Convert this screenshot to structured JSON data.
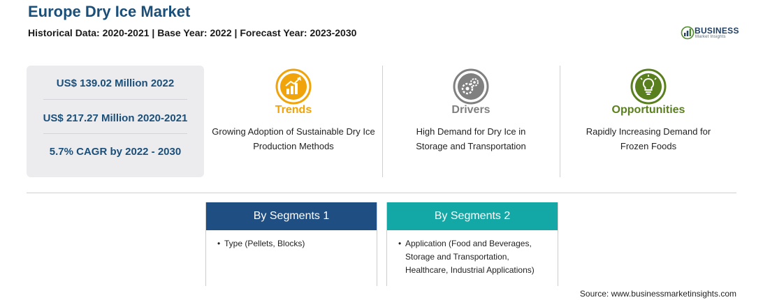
{
  "header": {
    "title": "Europe Dry Ice Market",
    "subtitle": "Historical Data: 2020-2021 | Base Year: 2022 | Forecast Year: 2023-2030"
  },
  "logo": {
    "name": "BUSINESS",
    "tagline": "Market Insights"
  },
  "stats": [
    "US$ 139.02 Million 2022",
    "US$ 217.27 Million 2020-2021",
    "5.7% CAGR by 2022 - 2030"
  ],
  "columns": [
    {
      "label": "Trends",
      "text": "Growing Adoption of Sustainable Dry Ice Production Methods",
      "color": "#f0a30a",
      "icon": "growth-chart-icon"
    },
    {
      "label": "Drivers",
      "text": "High Demand for Dry Ice in Storage and Transportation",
      "color": "#808080",
      "icon": "gears-icon"
    },
    {
      "label": "Opportunities",
      "text": "Rapidly Increasing Demand for Frozen Foods",
      "color": "#5a7f1f",
      "icon": "lightbulb-icon"
    }
  ],
  "segments": [
    {
      "title": "By Segments 1",
      "color": "#1f4f82",
      "items": [
        "Type (Pellets, Blocks)"
      ]
    },
    {
      "title": "By Segments 2",
      "color": "#13a7a5",
      "items": [
        "Application (Food and Beverages, Storage and Transportation, Healthcare, Industrial Applications)"
      ]
    }
  ],
  "source": "Source: www.businessmarketinsights.com"
}
